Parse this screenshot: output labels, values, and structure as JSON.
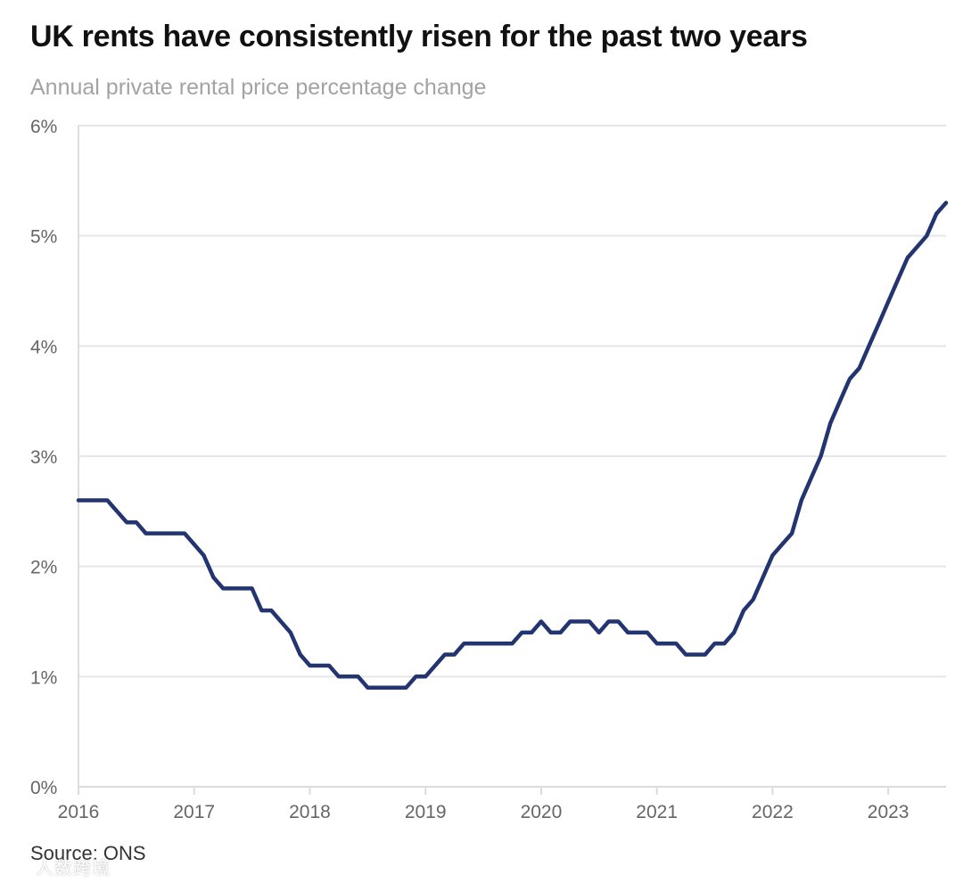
{
  "header": {
    "title": "UK rents have consistently risen for the past two years",
    "subtitle": "Annual private rental price percentage change"
  },
  "footer": {
    "source": "Source: ONS",
    "watermark": "人数跨境"
  },
  "chart_data": {
    "type": "line",
    "title": "UK rents have consistently risen for the past two years",
    "subtitle": "Annual private rental price percentage change",
    "xlabel": "",
    "ylabel": "",
    "xlim": [
      2016.0,
      2023.5
    ],
    "ylim": [
      0,
      6
    ],
    "grid": true,
    "y_ticks": [
      0,
      1,
      2,
      3,
      4,
      5,
      6
    ],
    "y_tick_labels": [
      "0%",
      "1%",
      "2%",
      "3%",
      "4%",
      "5%",
      "6%"
    ],
    "x_ticks": [
      2016,
      2017,
      2018,
      2019,
      2020,
      2021,
      2022,
      2023
    ],
    "x_tick_labels": [
      "2016",
      "2017",
      "2018",
      "2019",
      "2020",
      "2021",
      "2022",
      "2023"
    ],
    "colors": {
      "line": "#233570",
      "grid": "#e6e6e6",
      "axis": "#dcdcdc"
    },
    "series": [
      {
        "name": "Annual private rental price percentage change",
        "x": [
          2016.0,
          2016.083,
          2016.167,
          2016.25,
          2016.333,
          2016.417,
          2016.5,
          2016.583,
          2016.667,
          2016.75,
          2016.833,
          2016.917,
          2017.0,
          2017.083,
          2017.167,
          2017.25,
          2017.333,
          2017.417,
          2017.5,
          2017.583,
          2017.667,
          2017.75,
          2017.833,
          2017.917,
          2018.0,
          2018.083,
          2018.167,
          2018.25,
          2018.333,
          2018.417,
          2018.5,
          2018.583,
          2018.667,
          2018.75,
          2018.833,
          2018.917,
          2019.0,
          2019.083,
          2019.167,
          2019.25,
          2019.333,
          2019.417,
          2019.5,
          2019.583,
          2019.667,
          2019.75,
          2019.833,
          2019.917,
          2020.0,
          2020.083,
          2020.167,
          2020.25,
          2020.333,
          2020.417,
          2020.5,
          2020.583,
          2020.667,
          2020.75,
          2020.833,
          2020.917,
          2021.0,
          2021.083,
          2021.167,
          2021.25,
          2021.333,
          2021.417,
          2021.5,
          2021.583,
          2021.667,
          2021.75,
          2021.833,
          2021.917,
          2022.0,
          2022.083,
          2022.167,
          2022.25,
          2022.333,
          2022.417,
          2022.5,
          2022.583,
          2022.667,
          2022.75,
          2022.833,
          2022.917,
          2023.0,
          2023.083,
          2023.167,
          2023.25,
          2023.333,
          2023.417,
          2023.5
        ],
        "values": [
          2.6,
          2.6,
          2.6,
          2.6,
          2.5,
          2.4,
          2.4,
          2.3,
          2.3,
          2.3,
          2.3,
          2.3,
          2.2,
          2.1,
          1.9,
          1.8,
          1.8,
          1.8,
          1.8,
          1.6,
          1.6,
          1.5,
          1.4,
          1.2,
          1.1,
          1.1,
          1.1,
          1.0,
          1.0,
          1.0,
          0.9,
          0.9,
          0.9,
          0.9,
          0.9,
          1.0,
          1.0,
          1.1,
          1.2,
          1.2,
          1.3,
          1.3,
          1.3,
          1.3,
          1.3,
          1.3,
          1.4,
          1.4,
          1.5,
          1.4,
          1.4,
          1.5,
          1.5,
          1.5,
          1.4,
          1.5,
          1.5,
          1.4,
          1.4,
          1.4,
          1.3,
          1.3,
          1.3,
          1.2,
          1.2,
          1.2,
          1.3,
          1.3,
          1.4,
          1.6,
          1.7,
          1.9,
          2.1,
          2.2,
          2.3,
          2.6,
          2.8,
          3.0,
          3.3,
          3.5,
          3.7,
          3.8,
          4.0,
          4.2,
          4.4,
          4.6,
          4.8,
          4.9,
          5.0,
          5.2,
          5.3
        ]
      }
    ]
  }
}
